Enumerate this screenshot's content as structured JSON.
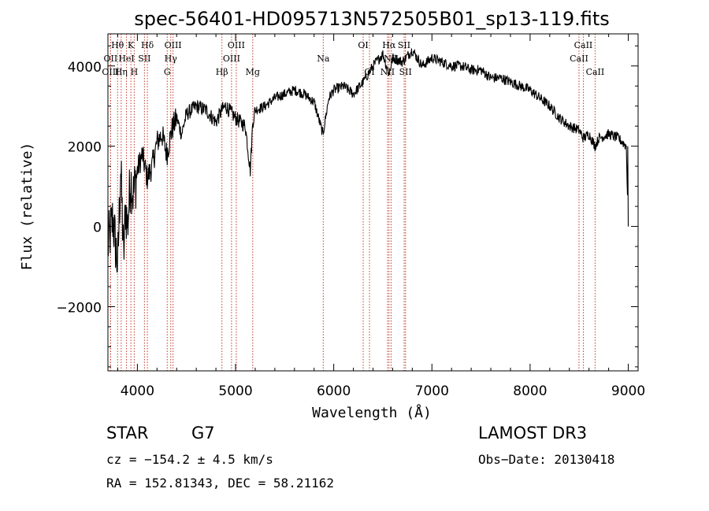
{
  "chart_data": {
    "type": "line",
    "title": "spec-56401-HD095713N572505B01_sp13-119.fits",
    "xlabel": "Wavelength (Å)",
    "ylabel": "Flux (relative)",
    "xlim": [
      3700,
      9100
    ],
    "ylim": [
      -3600,
      4800
    ],
    "xticks": [
      4000,
      5000,
      6000,
      7000,
      8000,
      9000
    ],
    "yticks": [
      -2000,
      0,
      2000,
      4000
    ],
    "grid": false,
    "series": [
      {
        "name": "spectrum",
        "x": [
          3700,
          3750,
          3800,
          3830,
          3860,
          3880,
          3900,
          3930,
          3960,
          4000,
          4050,
          4100,
          4150,
          4200,
          4250,
          4300,
          4350,
          4400,
          4450,
          4500,
          4600,
          4700,
          4800,
          4861,
          4900,
          5000,
          5100,
          5150,
          5175,
          5200,
          5300,
          5400,
          5500,
          5600,
          5700,
          5800,
          5890,
          5950,
          6000,
          6100,
          6200,
          6300,
          6400,
          6500,
          6563,
          6600,
          6700,
          6800,
          6900,
          7000,
          7100,
          7200,
          7300,
          7400,
          7500,
          7600,
          7700,
          7800,
          7900,
          8000,
          8100,
          8200,
          8300,
          8400,
          8500,
          8542,
          8600,
          8662,
          8700,
          8800,
          8900,
          8980,
          9000
        ],
        "y": [
          -500,
          200,
          -1000,
          1500,
          -800,
          500,
          0,
          1200,
          800,
          1400,
          1800,
          1200,
          1500,
          2100,
          2300,
          1800,
          2400,
          2700,
          2300,
          2800,
          3000,
          2900,
          2600,
          2900,
          3000,
          2700,
          2500,
          1400,
          2600,
          2900,
          3000,
          3200,
          3300,
          3400,
          3300,
          3100,
          2300,
          3200,
          3400,
          3500,
          3300,
          3600,
          4000,
          4300,
          3800,
          4200,
          4100,
          4400,
          4000,
          4200,
          4100,
          4000,
          4000,
          3900,
          3900,
          3700,
          3700,
          3600,
          3500,
          3400,
          3200,
          3000,
          2700,
          2500,
          2400,
          2200,
          2300,
          2000,
          2200,
          2300,
          2200,
          2000,
          0
        ]
      }
    ],
    "spectral_lines": [
      {
        "label": "Hθ",
        "wavelength": 3798,
        "row": 0
      },
      {
        "label": "K",
        "wavelength": 3934,
        "row": 0
      },
      {
        "label": "Hδ",
        "wavelength": 4102,
        "row": 0
      },
      {
        "label": "OIII",
        "wavelength": 4363,
        "row": 0
      },
      {
        "label": "OIII",
        "wavelength": 5007,
        "row": 0
      },
      {
        "label": "OI",
        "wavelength": 6300,
        "row": 0
      },
      {
        "label": "Hα",
        "wavelength": 6563,
        "row": 0
      },
      {
        "label": "SII",
        "wavelength": 6717,
        "row": 0
      },
      {
        "label": "CaII",
        "wavelength": 8542,
        "row": 0
      },
      {
        "label": "OII",
        "wavelength": 3727,
        "row": 1
      },
      {
        "label": "HeI",
        "wavelength": 3889,
        "row": 1
      },
      {
        "label": "SII",
        "wavelength": 4072,
        "row": 1
      },
      {
        "label": "Hγ",
        "wavelength": 4340,
        "row": 1
      },
      {
        "label": "OIII",
        "wavelength": 4959,
        "row": 1
      },
      {
        "label": "NII",
        "wavelength": 6584,
        "row": 1
      },
      {
        "label": "CaII",
        "wavelength": 8498,
        "row": 1
      },
      {
        "label": "OIII",
        "wavelength": 3727,
        "row": 2
      },
      {
        "label": "Hη",
        "wavelength": 3835,
        "row": 2
      },
      {
        "label": "H",
        "wavelength": 3968,
        "row": 2
      },
      {
        "label": "G",
        "wavelength": 4304,
        "row": 2
      },
      {
        "label": "Hβ",
        "wavelength": 4861,
        "row": 2
      },
      {
        "label": "Mg",
        "wavelength": 5175,
        "row": 2
      },
      {
        "label": "Na",
        "wavelength": 5893,
        "row": 1
      },
      {
        "label": "OI",
        "wavelength": 6364,
        "row": 2
      },
      {
        "label": "NII",
        "wavelength": 6548,
        "row": 2
      },
      {
        "label": "SII",
        "wavelength": 6731,
        "row": 2
      },
      {
        "label": "CaII",
        "wavelength": 8662,
        "row": 2
      }
    ]
  },
  "info": {
    "object_class": "STAR",
    "subclass": "G7",
    "survey": "LAMOST DR3",
    "redshift": "cz = −154.2 ± 4.5 km/s",
    "obs_date": "Obs−Date: 20130418",
    "coords": "RA = 152.81343, DEC =  58.21162"
  },
  "colors": {
    "line": "#000000",
    "marker": "#c0392b",
    "axis": "#000000"
  }
}
